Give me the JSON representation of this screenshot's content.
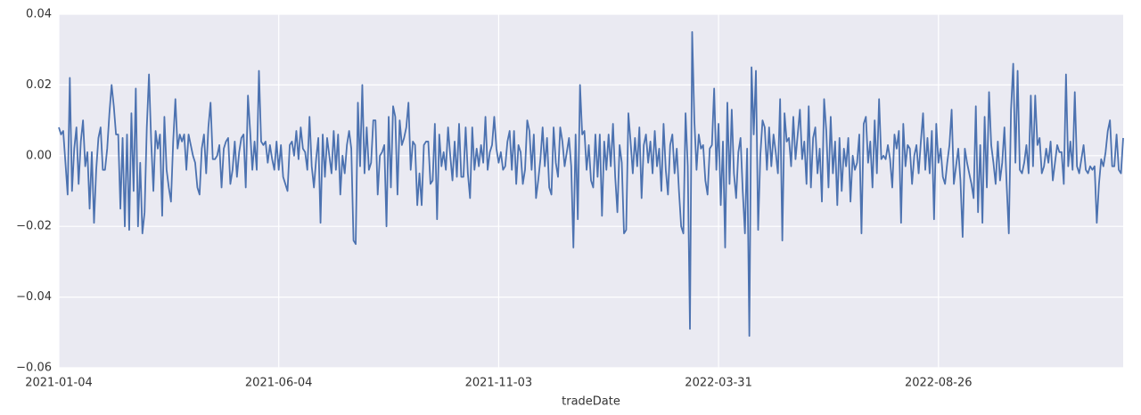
{
  "chart_data": {
    "type": "line",
    "xlabel": "tradeDate",
    "color": "#4c72b0",
    "grid": true,
    "xlim": [
      0,
      484
    ],
    "xticks": [
      {
        "value": 0,
        "label": "2021-01-04"
      },
      {
        "value": 100,
        "label": "2021-06-04"
      },
      {
        "value": 200,
        "label": "2021-11-03"
      },
      {
        "value": 300,
        "label": "2022-03-31"
      },
      {
        "value": 400,
        "label": "2022-08-26"
      }
    ],
    "ylim": [
      -0.06,
      0.04
    ],
    "yticks": [
      {
        "value": -0.06,
        "label": "−0.06"
      },
      {
        "value": -0.04,
        "label": "−0.04"
      },
      {
        "value": -0.02,
        "label": "−0.02"
      },
      {
        "value": 0,
        "label": "0.00"
      },
      0.02,
      0.04
    ],
    "values": [
      0.008,
      0.006,
      0.007,
      -0.002,
      -0.011,
      0.022,
      -0.01,
      0.002,
      0.008,
      -0.008,
      0.004,
      0.01,
      -0.003,
      0.001,
      -0.015,
      0.001,
      -0.019,
      -0.004,
      0.005,
      0.008,
      -0.004,
      -0.004,
      0.002,
      0.012,
      0.02,
      0.014,
      0.006,
      0.006,
      -0.015,
      0.005,
      -0.02,
      0.006,
      -0.021,
      0.012,
      -0.01,
      0.019,
      -0.02,
      -0.002,
      -0.022,
      -0.016,
      0.008,
      0.023,
      0.004,
      -0.01,
      0.007,
      0.002,
      0.006,
      -0.017,
      0.011,
      -0.004,
      -0.009,
      -0.013,
      0.004,
      0.016,
      0.002,
      0.006,
      0.004,
      0.006,
      -0.004,
      0.006,
      0.003,
      0.0,
      -0.002,
      -0.009,
      -0.011,
      0.002,
      0.006,
      -0.005,
      0.008,
      0.015,
      -0.001,
      -0.001,
      0.0,
      0.003,
      -0.009,
      0.002,
      0.004,
      0.005,
      -0.008,
      -0.004,
      0.004,
      -0.006,
      0.001,
      0.005,
      0.006,
      -0.009,
      0.017,
      0.007,
      -0.004,
      0.004,
      -0.004,
      0.024,
      0.004,
      0.003,
      0.004,
      -0.002,
      0.003,
      -0.001,
      -0.004,
      0.004,
      -0.004,
      0.003,
      -0.006,
      -0.008,
      -0.01,
      0.003,
      0.004,
      0.0,
      0.007,
      -0.001,
      0.008,
      0.002,
      0.001,
      -0.004,
      0.011,
      -0.003,
      -0.009,
      -0.001,
      0.005,
      -0.019,
      0.006,
      -0.006,
      0.005,
      0.0,
      -0.005,
      0.007,
      -0.004,
      0.006,
      -0.011,
      0.0,
      -0.005,
      0.003,
      0.007,
      0.002,
      -0.024,
      -0.025,
      0.015,
      -0.003,
      0.02,
      -0.005,
      0.008,
      -0.004,
      -0.002,
      0.01,
      0.01,
      -0.011,
      0.0,
      0.001,
      0.003,
      -0.02,
      0.011,
      -0.009,
      0.014,
      0.011,
      -0.011,
      0.01,
      0.003,
      0.005,
      0.008,
      0.015,
      -0.004,
      0.004,
      0.003,
      -0.014,
      -0.005,
      -0.014,
      0.003,
      0.004,
      0.004,
      -0.008,
      -0.007,
      0.009,
      -0.018,
      0.006,
      -0.003,
      0.001,
      -0.004,
      0.008,
      0.0,
      -0.007,
      0.004,
      -0.006,
      0.009,
      -0.006,
      -0.006,
      0.008,
      -0.005,
      -0.012,
      0.008,
      -0.004,
      0.002,
      -0.003,
      0.003,
      -0.002,
      0.011,
      -0.004,
      0.001,
      0.003,
      0.011,
      0.002,
      -0.002,
      0.001,
      -0.004,
      -0.003,
      0.004,
      0.007,
      -0.004,
      0.007,
      -0.008,
      0.003,
      0.001,
      -0.008,
      -0.004,
      0.01,
      0.007,
      -0.004,
      0.006,
      -0.012,
      -0.007,
      -0.001,
      0.008,
      -0.003,
      0.005,
      -0.009,
      -0.011,
      0.008,
      -0.002,
      -0.006,
      0.008,
      0.004,
      -0.003,
      0.001,
      0.005,
      -0.003,
      -0.026,
      0.006,
      -0.018,
      0.02,
      0.006,
      0.007,
      -0.004,
      0.003,
      -0.007,
      -0.009,
      0.006,
      -0.006,
      0.006,
      -0.017,
      0.004,
      -0.004,
      0.006,
      -0.003,
      0.009,
      -0.006,
      -0.016,
      0.003,
      -0.002,
      -0.022,
      -0.021,
      0.012,
      0.004,
      -0.005,
      0.005,
      -0.003,
      0.008,
      -0.012,
      0.003,
      0.006,
      -0.002,
      0.004,
      -0.005,
      0.007,
      -0.003,
      0.002,
      -0.01,
      0.009,
      -0.004,
      -0.011,
      0.003,
      0.006,
      -0.005,
      0.002,
      -0.01,
      -0.02,
      -0.022,
      0.012,
      -0.003,
      -0.049,
      0.035,
      0.01,
      -0.004,
      0.006,
      0.002,
      0.003,
      -0.007,
      -0.011,
      0.002,
      0.003,
      0.019,
      -0.004,
      0.009,
      -0.014,
      0.004,
      -0.026,
      0.015,
      -0.008,
      0.013,
      -0.005,
      -0.012,
      0.001,
      0.005,
      -0.01,
      -0.022,
      0.002,
      -0.051,
      0.025,
      0.006,
      0.024,
      -0.021,
      0.0,
      0.01,
      0.008,
      -0.004,
      0.008,
      -0.003,
      0.006,
      0.001,
      -0.005,
      0.016,
      -0.024,
      0.012,
      0.004,
      0.005,
      -0.003,
      0.011,
      -0.001,
      0.006,
      0.013,
      -0.001,
      0.004,
      -0.008,
      0.014,
      -0.009,
      0.005,
      0.008,
      -0.005,
      0.002,
      -0.013,
      0.016,
      0.007,
      -0.009,
      0.011,
      -0.005,
      0.004,
      -0.014,
      0.005,
      -0.01,
      0.002,
      -0.003,
      0.005,
      -0.013,
      0.0,
      -0.004,
      -0.002,
      0.006,
      -0.022,
      0.009,
      0.011,
      -0.002,
      0.004,
      -0.009,
      0.01,
      -0.005,
      0.016,
      -0.001,
      0.0,
      -0.001,
      0.003,
      -0.001,
      -0.009,
      0.006,
      0.002,
      0.007,
      -0.019,
      0.009,
      -0.003,
      0.003,
      0.002,
      -0.008,
      0.0,
      0.003,
      -0.005,
      0.004,
      0.012,
      -0.004,
      0.005,
      -0.005,
      0.007,
      -0.018,
      0.009,
      -0.002,
      0.002,
      -0.006,
      -0.008,
      -0.002,
      0.003,
      0.013,
      -0.008,
      -0.003,
      0.002,
      -0.007,
      -0.023,
      0.002,
      -0.002,
      -0.005,
      -0.008,
      -0.012,
      0.014,
      -0.016,
      0.003,
      -0.019,
      0.011,
      -0.009,
      0.018,
      0.003,
      -0.002,
      -0.008,
      0.004,
      -0.007,
      -0.002,
      0.008,
      -0.008,
      -0.022,
      0.013,
      0.026,
      -0.002,
      0.024,
      -0.004,
      -0.005,
      -0.002,
      0.003,
      -0.005,
      0.017,
      -0.003,
      0.017,
      0.003,
      0.005,
      -0.005,
      -0.003,
      0.002,
      -0.002,
      0.004,
      -0.007,
      -0.002,
      0.003,
      0.001,
      0.001,
      -0.008,
      0.023,
      -0.003,
      0.004,
      -0.004,
      0.018,
      -0.003,
      -0.005,
      -0.001,
      0.003,
      -0.004,
      -0.005,
      -0.003,
      -0.004,
      -0.003,
      -0.019,
      -0.008,
      -0.001,
      -0.003,
      0.001,
      0.007,
      0.01,
      -0.003,
      -0.003,
      0.006,
      -0.004,
      -0.005,
      0.005
    ]
  }
}
